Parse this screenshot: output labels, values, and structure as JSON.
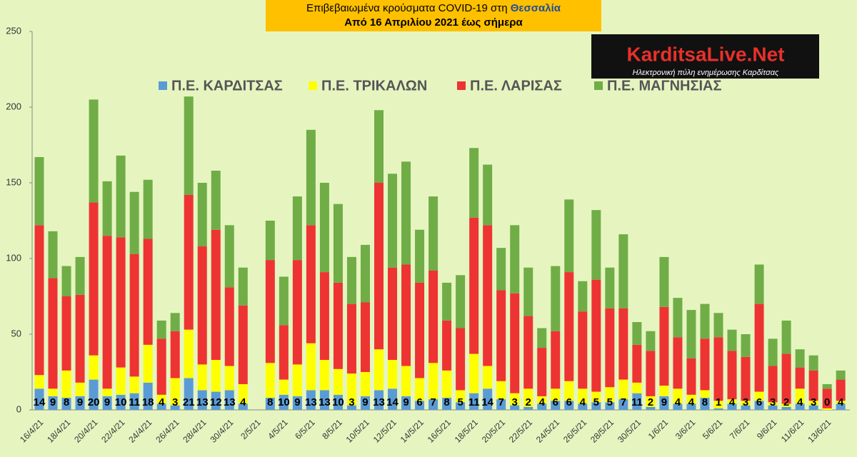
{
  "chart_data": {
    "type": "stacked_bar",
    "title": "Επιβεβαιωμένα κρούσματα COVID-19 στη",
    "title_highlight": "Θεσσαλία",
    "subtitle": "Από 16 Απριλίου 2021 έως σήμερα",
    "logo": "KarditsaLive.Net",
    "logo_tagline": "Ηλεκτρονική πύλη ενημέρωσης Καρδίτσας",
    "categories": [
      "16/4/21",
      null,
      "18/4/21",
      null,
      "20/4/21",
      null,
      "22/4/21",
      null,
      "24/4/21",
      null,
      "26/4/21",
      null,
      "28/4/21",
      null,
      "30/4/21",
      null,
      "2/5/21",
      null,
      "4/5/21",
      null,
      "6/5/21",
      null,
      "8/5/21",
      null,
      "10/5/21",
      null,
      "12/5/21",
      null,
      "14/5/21",
      null,
      "16/5/21",
      null,
      "18/5/21",
      null,
      "20/5/21",
      null,
      "22/5/21",
      null,
      "24/5/21",
      null,
      "26/5/21",
      null,
      "28/5/21",
      null,
      "30/5/21",
      null,
      "1/6/21",
      null,
      "3/6/21",
      null,
      "5/6/21",
      null,
      "7/6/21",
      null,
      "9/6/21",
      null,
      "11/6/21",
      null,
      "13/6/21",
      null
    ],
    "series": [
      {
        "name": "Π.Ε. ΚΑΡΔΙΤΣΑΣ",
        "color": "#5b9bd5",
        "values": [
          14,
          9,
          8,
          9,
          20,
          9,
          10,
          11,
          18,
          4,
          3,
          21,
          13,
          12,
          13,
          4,
          null,
          8,
          10,
          9,
          13,
          13,
          10,
          3,
          9,
          13,
          14,
          9,
          6,
          7,
          8,
          5,
          11,
          14,
          7,
          3,
          2,
          4,
          6,
          6,
          4,
          5,
          5,
          7,
          11,
          2,
          9,
          4,
          4,
          8,
          1,
          4,
          3,
          6,
          3,
          2,
          4,
          3,
          0,
          4
        ]
      },
      {
        "name": "Π.Ε. ΤΡΙΚΑΛΩΝ",
        "color": "#ffff00",
        "values": [
          9,
          5,
          18,
          9,
          16,
          5,
          18,
          11,
          25,
          6,
          18,
          32,
          17,
          21,
          16,
          13,
          null,
          23,
          10,
          21,
          31,
          20,
          17,
          21,
          16,
          27,
          19,
          20,
          15,
          24,
          18,
          8,
          26,
          15,
          12,
          8,
          12,
          5,
          8,
          13,
          10,
          7,
          10,
          13,
          7,
          7,
          7,
          10,
          6,
          5,
          5,
          3,
          3,
          6,
          2,
          2,
          10,
          3,
          1,
          2
        ]
      },
      {
        "name": "Π.Ε. ΛΑΡΙΣΑΣ",
        "color": "#ee3333",
        "values": [
          99,
          73,
          49,
          58,
          101,
          101,
          86,
          81,
          70,
          37,
          31,
          89,
          78,
          86,
          52,
          52,
          null,
          68,
          36,
          69,
          78,
          58,
          57,
          46,
          46,
          110,
          61,
          67,
          63,
          61,
          33,
          41,
          90,
          93,
          60,
          66,
          48,
          32,
          38,
          72,
          51,
          74,
          52,
          47,
          25,
          30,
          52,
          34,
          24,
          34,
          42,
          32,
          29,
          58,
          24,
          33,
          14,
          20,
          13,
          14
        ]
      },
      {
        "name": "Π.Ε. ΜΑΓΝΗΣΙΑΣ",
        "color": "#70ad47",
        "values": [
          45,
          31,
          20,
          25,
          68,
          36,
          54,
          41,
          39,
          12,
          12,
          65,
          42,
          39,
          41,
          25,
          null,
          26,
          32,
          42,
          63,
          59,
          52,
          31,
          38,
          48,
          62,
          68,
          35,
          49,
          25,
          35,
          46,
          40,
          28,
          45,
          32,
          13,
          43,
          48,
          20,
          46,
          27,
          49,
          15,
          13,
          33,
          26,
          32,
          23,
          16,
          14,
          15,
          26,
          18,
          22,
          12,
          10,
          3,
          6
        ]
      }
    ],
    "ylim": [
      0,
      250
    ],
    "yticks": [
      0,
      50,
      100,
      150,
      200,
      250
    ],
    "grid": false
  }
}
